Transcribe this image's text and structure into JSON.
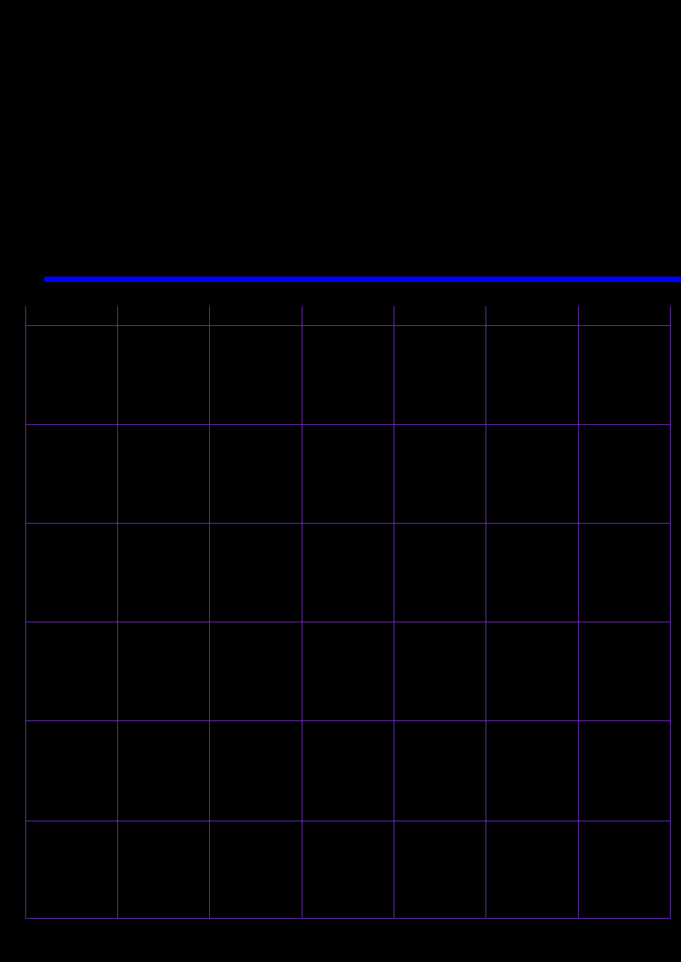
{
  "colors": {
    "background": "#000000",
    "accent_rule": "#0000ff",
    "grid_lines": "#7b2fd0"
  },
  "calendar": {
    "columns": 7,
    "header_row": [
      "",
      "",
      "",
      "",
      "",
      "",
      ""
    ],
    "week_rows": 6
  }
}
